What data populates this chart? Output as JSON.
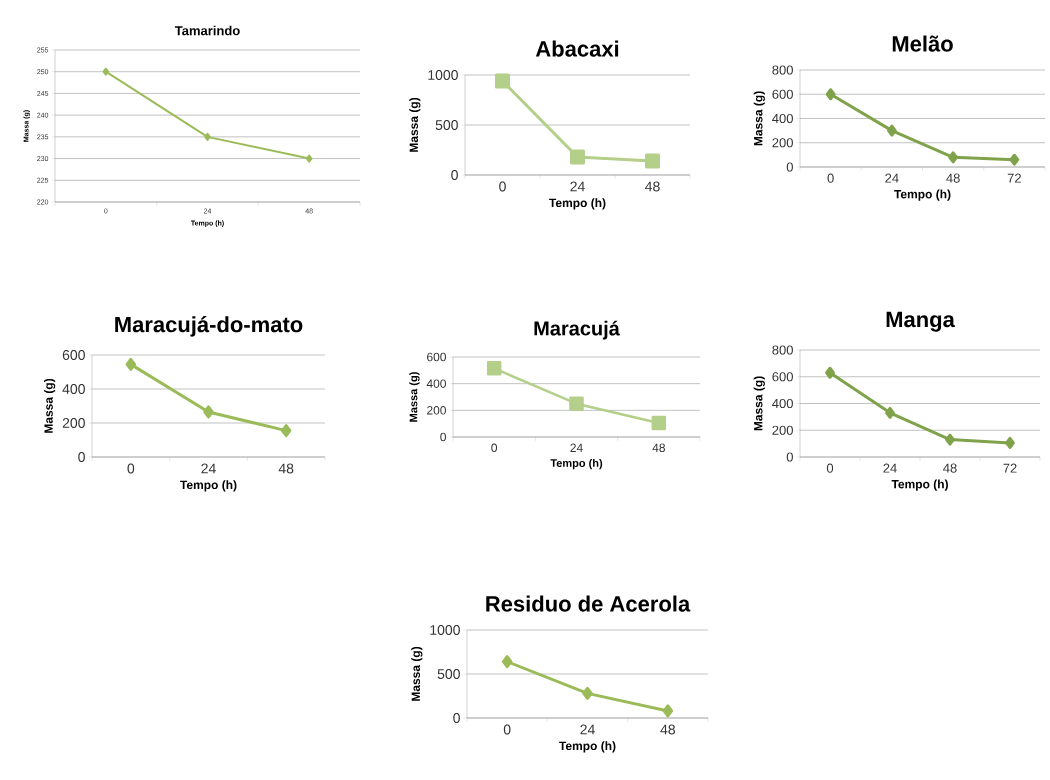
{
  "chart_data": [
    {
      "type": "line",
      "title": "Tamarindo",
      "xlabel": "Tempo (h)",
      "ylabel": "Massa (g)",
      "categories": [
        "0",
        "24",
        "48"
      ],
      "values": [
        250,
        235,
        230
      ],
      "color": "#9bbb59",
      "marker": "diamond",
      "ylim": [
        220,
        255
      ],
      "yticks": [
        220,
        225,
        230,
        235,
        240,
        245,
        250,
        255
      ],
      "grid": "y"
    },
    {
      "type": "line",
      "title": "Abacaxi",
      "xlabel": "Tempo (h)",
      "ylabel": "Massa (g)",
      "categories": [
        "0",
        "24",
        "48"
      ],
      "values": [
        940,
        180,
        140
      ],
      "color": "#b3cf8a",
      "marker": "square",
      "ylim": [
        0,
        1000
      ],
      "yticks": [
        0,
        500,
        1000
      ],
      "grid": "y"
    },
    {
      "type": "line",
      "title": "Melão",
      "xlabel": "Tempo (h)",
      "ylabel": "Massa (g)",
      "categories": [
        "0",
        "24",
        "48",
        "72"
      ],
      "values": [
        600,
        300,
        80,
        60
      ],
      "color": "#7fa24a",
      "marker": "diamond",
      "ylim": [
        0,
        800
      ],
      "yticks": [
        0,
        200,
        400,
        600,
        800
      ],
      "grid": "y"
    },
    {
      "type": "line",
      "title": "Maracujá-do-mato",
      "xlabel": "Tempo (h)",
      "ylabel": "Massa (g)",
      "categories": [
        "0",
        "24",
        "48"
      ],
      "values": [
        545,
        265,
        155
      ],
      "color": "#9bbb59",
      "marker": "diamond",
      "ylim": [
        0,
        600
      ],
      "yticks": [
        0,
        200,
        400,
        600
      ],
      "grid": "y"
    },
    {
      "type": "line",
      "title": "Maracujá",
      "xlabel": "Tempo (h)",
      "ylabel": "Massa (g)",
      "categories": [
        "0",
        "24",
        "48"
      ],
      "values": [
        515,
        250,
        105
      ],
      "color": "#b3cf8a",
      "marker": "square",
      "ylim": [
        0,
        600
      ],
      "yticks": [
        0,
        200,
        400,
        600
      ],
      "grid": "y"
    },
    {
      "type": "line",
      "title": "Manga",
      "xlabel": "Tempo (h)",
      "ylabel": "Massa (g)",
      "categories": [
        "0",
        "24",
        "48",
        "72"
      ],
      "values": [
        630,
        330,
        130,
        105
      ],
      "color": "#7fa24a",
      "marker": "diamond",
      "ylim": [
        0,
        800
      ],
      "yticks": [
        0,
        200,
        400,
        600,
        800
      ],
      "grid": "y"
    },
    {
      "type": "line",
      "title": "Residuo de Acerola",
      "xlabel": "Tempo (h)",
      "ylabel": "Massa (g)",
      "categories": [
        "0",
        "24",
        "48"
      ],
      "values": [
        640,
        280,
        80
      ],
      "color": "#9bbb59",
      "marker": "diamond",
      "ylim": [
        0,
        1000
      ],
      "yticks": [
        0,
        500,
        1000
      ],
      "grid": "y"
    }
  ]
}
